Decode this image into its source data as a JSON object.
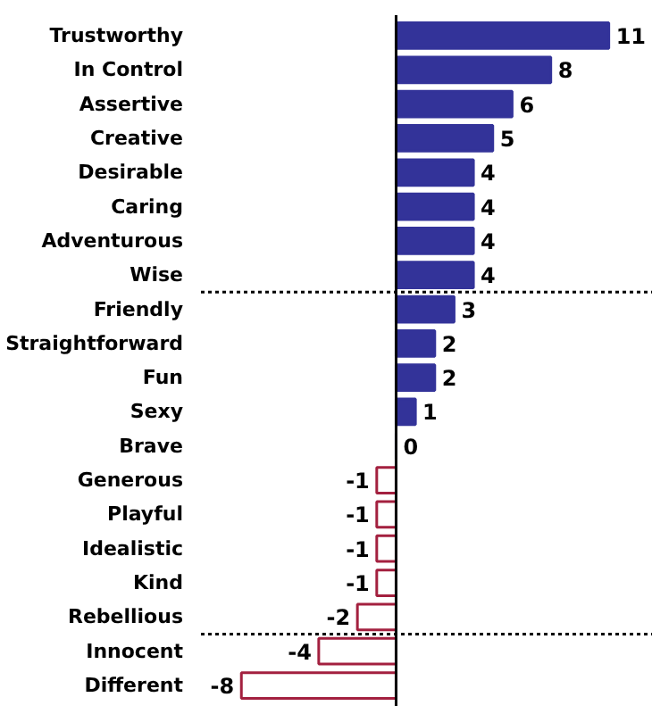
{
  "chart_data": {
    "type": "bar",
    "orientation": "horizontal",
    "categories": [
      "Trustworthy",
      "In Control",
      "Assertive",
      "Creative",
      "Desirable",
      "Caring",
      "Adventurous",
      "Wise",
      "Friendly",
      "Straightforward",
      "Fun",
      "Sexy",
      "Brave",
      "Generous",
      "Playful",
      "Idealistic",
      "Kind",
      "Rebellious",
      "Innocent",
      "Different"
    ],
    "values": [
      11,
      8,
      6,
      5,
      4,
      4,
      4,
      4,
      3,
      2,
      2,
      1,
      0,
      -1,
      -1,
      -1,
      -1,
      -2,
      -4,
      -8
    ],
    "colors": [
      "#333399",
      "#333399",
      "#333399",
      "#333399",
      "#333399",
      "#333399",
      "#333399",
      "#333399",
      "#333399",
      "#333399",
      "#333399",
      "#333399",
      "#333399",
      "#a3203f",
      "#a3203f",
      "#a3203f",
      "#a3203f",
      "#a3203f",
      "#a3203f",
      "#a3203f"
    ],
    "data_labels": true
  }
}
